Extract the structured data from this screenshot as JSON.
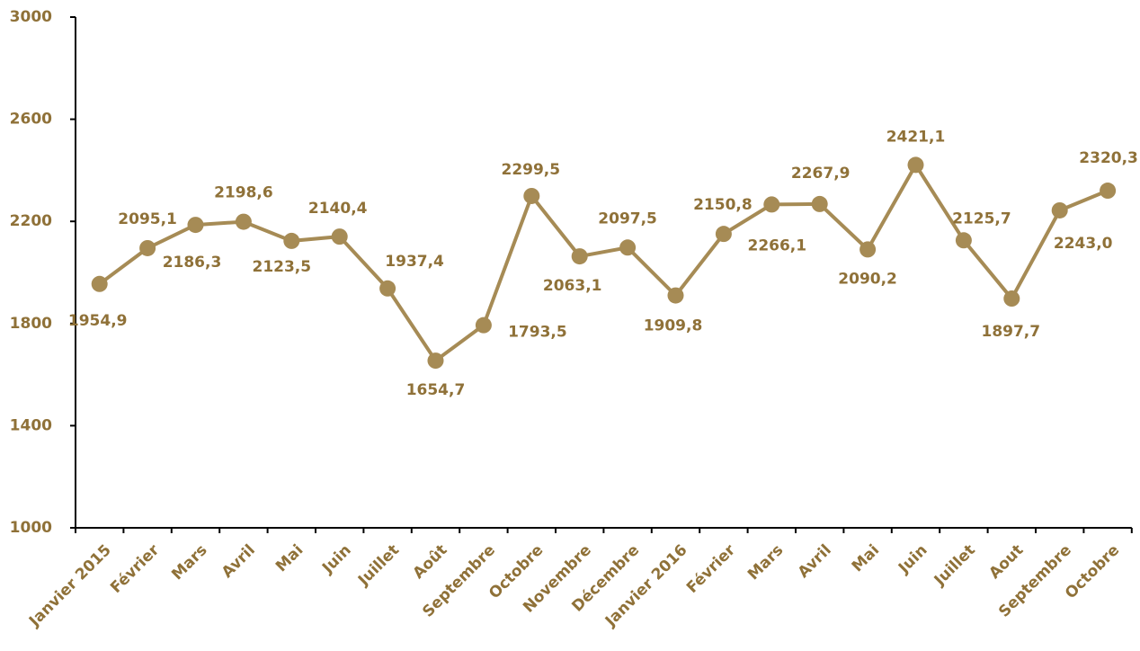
{
  "chart_data": {
    "type": "line",
    "categories": [
      "Janvier 2015",
      "Février",
      "Mars",
      "Avril",
      "Mai",
      "Juin",
      "Juillet",
      "Août",
      "Septembre",
      "Octobre",
      "Novembre",
      "Décembre",
      "Janvier 2016",
      "Février",
      "Mars",
      "Avril",
      "Mai",
      "Juin",
      "Juillet",
      "Aout",
      "Septembre",
      "Octobre"
    ],
    "series": [
      {
        "color": "#a68b55",
        "values": [
          1954.9,
          2095.1,
          2186.3,
          2198.6,
          2123.5,
          2140.4,
          1937.4,
          1654.7,
          1793.5,
          2299.5,
          2063.1,
          2097.5,
          1909.8,
          2150.8,
          2266.1,
          2267.9,
          2090.2,
          2421.1,
          2125.7,
          1897.7,
          2243.0,
          2320.3
        ],
        "value_labels": [
          "1954,9",
          "2095,1",
          "2186,3",
          "2198,6",
          "2123,5",
          "2140,4",
          "1937,4",
          "1654,7",
          "1793,5",
          "2299,5",
          "2063,1",
          "2097,5",
          "1909,8",
          "2150,8",
          "2266,1",
          "2267,9",
          "2090,2",
          "2421,1",
          "2125,7",
          "1897,7",
          "2243,0",
          "2320,3"
        ]
      }
    ],
    "ylim": [
      1000,
      3000
    ],
    "yticks": [
      1000,
      1400,
      1800,
      2200,
      2600,
      3000
    ]
  }
}
